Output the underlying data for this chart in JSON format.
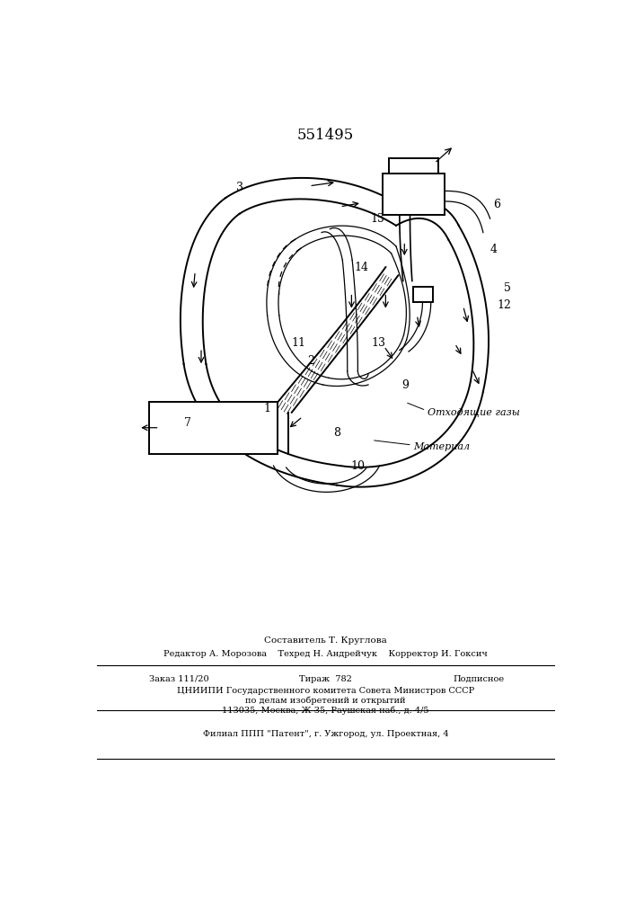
{
  "title": "551495",
  "bg_color": "#ffffff",
  "line_color": "#000000",
  "bottom_text_lines": [
    "Составитель Т. Круглова",
    "Редактор А. Морозова    Техред Н. Андрейчук    Корректор И. Гоксич",
    "Заказ 111/20",
    "Тираж  782",
    "Подписное",
    "ЦНИИПИ Государственного комитета Совета Министров СССР",
    "по делам изобретений и открытий",
    "113035, Москва, Ж-35, Раушская наб., д. 4/5",
    "Филиал ППП \"Патент\", г. Ужгород, ул. Проектная, 4"
  ],
  "label_gaz": "Отходящие газы",
  "label_mat": "Материал"
}
